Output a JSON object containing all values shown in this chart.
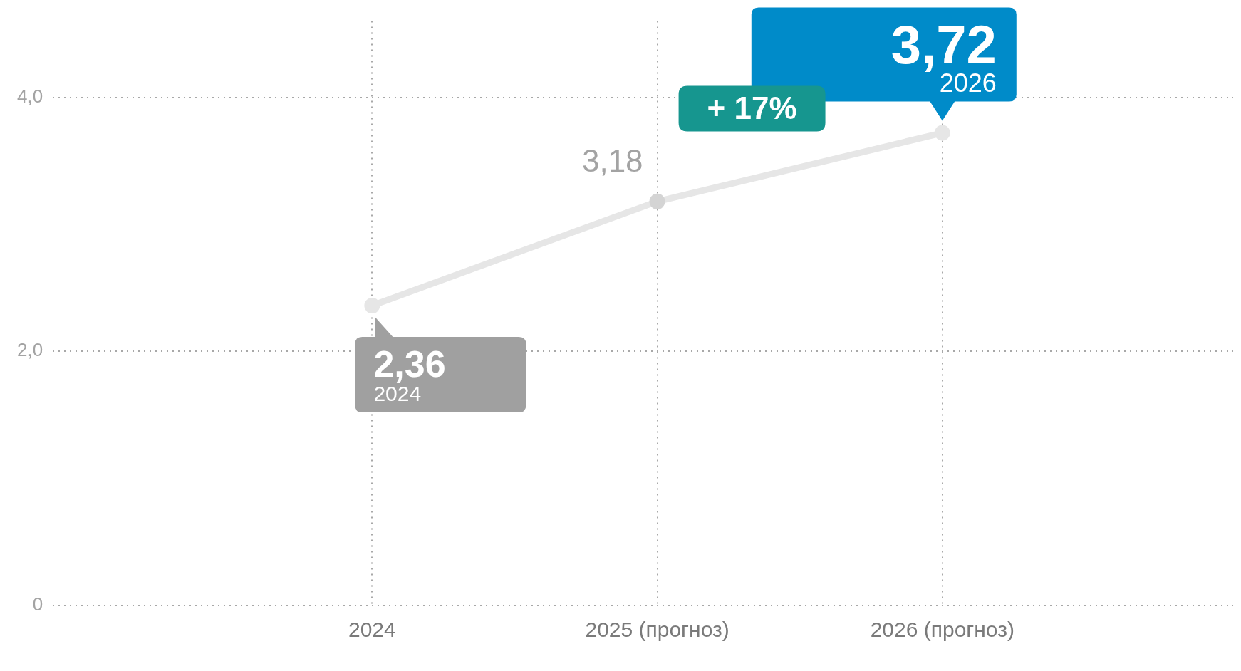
{
  "chart_data": {
    "type": "line",
    "categories": [
      "2024",
      "2025 (прогноз)",
      "2026 (прогноз)"
    ],
    "series": [
      {
        "color": "#e6e6e6",
        "values": [
          2.36,
          3.18,
          3.72
        ],
        "value_labels": [
          "2,36",
          "3,18",
          "3,72"
        ]
      }
    ],
    "ylim": [
      0,
      4.6
    ],
    "yticks": [
      0,
      {
        "value": 2,
        "label": "2,0"
      },
      {
        "value": 4,
        "label": "4,0"
      }
    ],
    "grid": true,
    "marker": "circle",
    "line_style": "solid",
    "legend": false,
    "annotations": [
      "2024",
      "2026",
      "+ 17%"
    ]
  }
}
